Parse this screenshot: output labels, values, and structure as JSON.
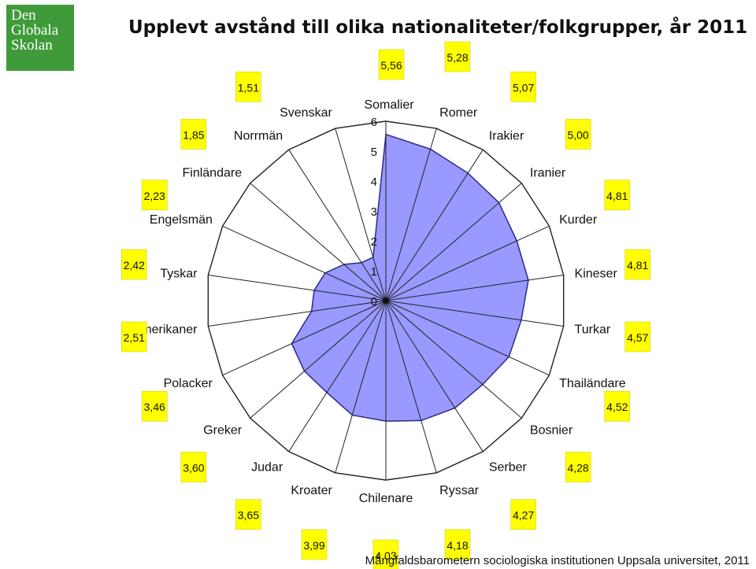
{
  "logo": {
    "lines": [
      "Den",
      "Globala",
      "Skolan"
    ]
  },
  "chart_data": {
    "type": "radar",
    "title": "Upplevt avstånd till olika nationaliteter/folkgrupper, år 2011",
    "rlim": [
      0,
      6
    ],
    "r_ticks": [
      "0",
      "1",
      "2",
      "3",
      "4",
      "5",
      "6"
    ],
    "grid": true,
    "series_color": "#9999ff",
    "value_box_color": "#ffff00",
    "categories": [
      "Somalier",
      "Romer",
      "Irakier",
      "Iranier",
      "Kurder",
      "Kineser",
      "Turkar",
      "Thailändare",
      "Bosnier",
      "Serber",
      "Ryssar",
      "Chilenare",
      "Kroater",
      "Judar",
      "Greker",
      "Polacker",
      "Amerikaner",
      "Tyskar",
      "Engelsmän",
      "Finländare",
      "Norrmän",
      "Svenskar"
    ],
    "values": [
      5.56,
      5.28,
      5.07,
      5.0,
      4.81,
      4.81,
      4.57,
      4.52,
      4.28,
      4.27,
      4.18,
      4.03,
      3.99,
      3.65,
      3.6,
      3.46,
      2.51,
      2.42,
      2.23,
      1.85,
      1.51,
      1.51
    ],
    "value_labels": [
      "5,56",
      "5,28",
      "5,07",
      "5,00",
      "4,81",
      "4,81",
      "4,57",
      "4,52",
      "4,28",
      "4,27",
      "4,18",
      "4,03",
      "3,99",
      "3,65",
      "3,60",
      "3,46",
      "2,51",
      "2,42",
      "2,23",
      "1,85",
      "1,51",
      ""
    ]
  },
  "source": "Mångfaldsbarometern sociologiska institutionen Uppsala universitet, 2011"
}
